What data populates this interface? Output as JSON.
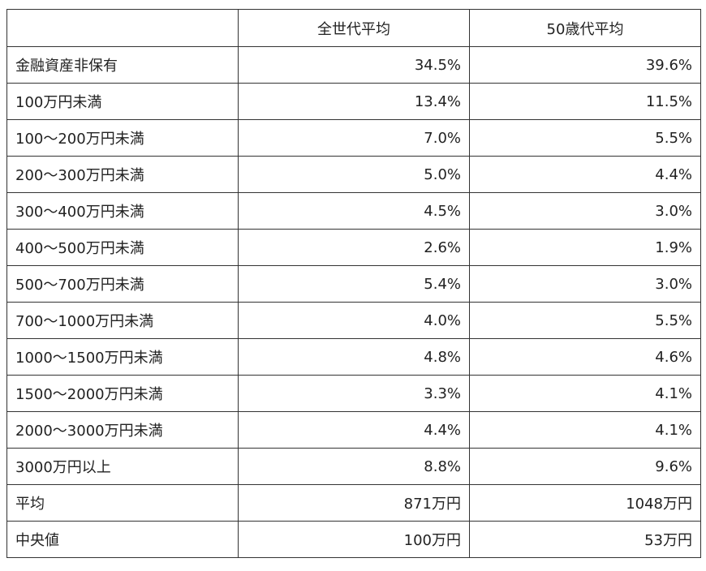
{
  "table": {
    "headers": [
      "",
      "全世代平均",
      "50歳代平均"
    ],
    "rows": [
      {
        "label": "金融資産非保有",
        "all": "34.5%",
        "fifties": "39.6%"
      },
      {
        "label": "100万円未満",
        "all": "13.4%",
        "fifties": "11.5%"
      },
      {
        "label": "100〜200万円未満",
        "all": "7.0%",
        "fifties": "5.5%"
      },
      {
        "label": "200〜300万円未満",
        "all": "5.0%",
        "fifties": "4.4%"
      },
      {
        "label": "300〜400万円未満",
        "all": "4.5%",
        "fifties": "3.0%"
      },
      {
        "label": "400〜500万円未満",
        "all": "2.6%",
        "fifties": "1.9%"
      },
      {
        "label": "500〜700万円未満",
        "all": "5.4%",
        "fifties": "3.0%"
      },
      {
        "label": "700〜1000万円未満",
        "all": "4.0%",
        "fifties": "5.5%"
      },
      {
        "label": "1000〜1500万円未満",
        "all": "4.8%",
        "fifties": "4.6%"
      },
      {
        "label": "1500〜2000万円未満",
        "all": "3.3%",
        "fifties": "4.1%"
      },
      {
        "label": "2000〜3000万円未満",
        "all": "4.4%",
        "fifties": "4.1%"
      },
      {
        "label": "3000万円以上",
        "all": "8.8%",
        "fifties": "9.6%"
      },
      {
        "label": "平均",
        "all": "871万円",
        "fifties": "1048万円"
      },
      {
        "label": "中央値",
        "all": "100万円",
        "fifties": "53万円"
      }
    ]
  }
}
